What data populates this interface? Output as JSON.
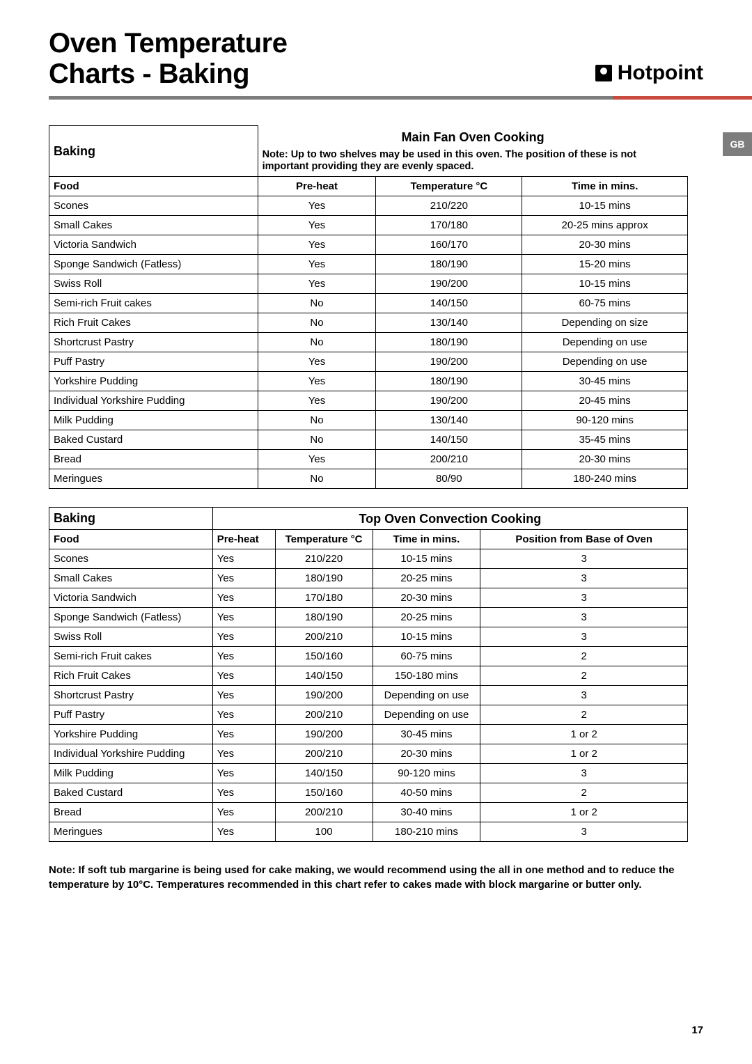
{
  "page": {
    "title_line1": "Oven Temperature",
    "title_line2": "Charts - Baking",
    "brand": "Hotpoint",
    "region_tab": "GB",
    "page_number": "17",
    "footnote": "Note: If soft tub margarine is being used for cake making, we would recommend using the all in one method and to reduce the temperature by 10°C. Temperatures recommended in this chart refer to cakes made with block margarine or butter only."
  },
  "table1": {
    "section_label": "Baking",
    "header_title": "Main Fan Oven Cooking",
    "header_note": "Note: Up to two shelves may be used in this oven. The position of these is not important providing they are evenly spaced.",
    "columns": [
      "Food",
      "Pre-heat",
      "Temperature °C",
      "Time in mins."
    ],
    "rows": [
      [
        "Scones",
        "Yes",
        "210/220",
        "10-15 mins"
      ],
      [
        "Small Cakes",
        "Yes",
        "170/180",
        "20-25 mins approx"
      ],
      [
        "Victoria Sandwich",
        "Yes",
        "160/170",
        "20-30 mins"
      ],
      [
        "Sponge Sandwich (Fatless)",
        "Yes",
        "180/190",
        "15-20 mins"
      ],
      [
        "Swiss Roll",
        "Yes",
        "190/200",
        "10-15 mins"
      ],
      [
        "Semi-rich Fruit cakes",
        "No",
        "140/150",
        "60-75 mins"
      ],
      [
        "Rich Fruit Cakes",
        "No",
        "130/140",
        "Depending on size"
      ],
      [
        "Shortcrust Pastry",
        "No",
        "180/190",
        "Depending on use"
      ],
      [
        "Puff Pastry",
        "Yes",
        "190/200",
        "Depending on use"
      ],
      [
        "Yorkshire Pudding",
        "Yes",
        "180/190",
        "30-45 mins"
      ],
      [
        "Individual Yorkshire Pudding",
        "Yes",
        "190/200",
        "20-45 mins"
      ],
      [
        "Milk Pudding",
        "No",
        "130/140",
        "90-120 mins"
      ],
      [
        "Baked Custard",
        "No",
        "140/150",
        "35-45 mins"
      ],
      [
        "Bread",
        "Yes",
        "200/210",
        "20-30 mins"
      ],
      [
        "Meringues",
        "No",
        "80/90",
        "180-240 mins"
      ]
    ]
  },
  "table2": {
    "section_label": "Baking",
    "header_title": "Top Oven Convection Cooking",
    "columns": [
      "Food",
      "Pre-heat",
      "Temperature °C",
      "Time in mins.",
      "Position from Base of Oven"
    ],
    "rows": [
      [
        "Scones",
        "Yes",
        "210/220",
        "10-15 mins",
        "3"
      ],
      [
        "Small Cakes",
        "Yes",
        "180/190",
        "20-25 mins",
        "3"
      ],
      [
        "Victoria Sandwich",
        "Yes",
        "170/180",
        "20-30 mins",
        "3"
      ],
      [
        "Sponge Sandwich (Fatless)",
        "Yes",
        "180/190",
        "20-25 mins",
        "3"
      ],
      [
        "Swiss Roll",
        "Yes",
        "200/210",
        "10-15 mins",
        "3"
      ],
      [
        "Semi-rich Fruit cakes",
        "Yes",
        "150/160",
        "60-75 mins",
        "2"
      ],
      [
        "Rich Fruit Cakes",
        "Yes",
        "140/150",
        "150-180 mins",
        "2"
      ],
      [
        "Shortcrust Pastry",
        "Yes",
        "190/200",
        "Depending on use",
        "3"
      ],
      [
        "Puff Pastry",
        "Yes",
        "200/210",
        "Depending on use",
        "2"
      ],
      [
        "Yorkshire Pudding",
        "Yes",
        "190/200",
        "30-45 mins",
        "1 or 2"
      ],
      [
        "Individual Yorkshire Pudding",
        "Yes",
        "200/210",
        "20-30 mins",
        "1 or 2"
      ],
      [
        "Milk Pudding",
        "Yes",
        "140/150",
        "90-120 mins",
        "3"
      ],
      [
        "Baked Custard",
        "Yes",
        "150/160",
        "40-50 mins",
        "2"
      ],
      [
        "Bread",
        "Yes",
        "200/210",
        "30-40 mins",
        "1 or 2"
      ],
      [
        "Meringues",
        "Yes",
        "100",
        "180-210 mins",
        "3"
      ]
    ]
  }
}
